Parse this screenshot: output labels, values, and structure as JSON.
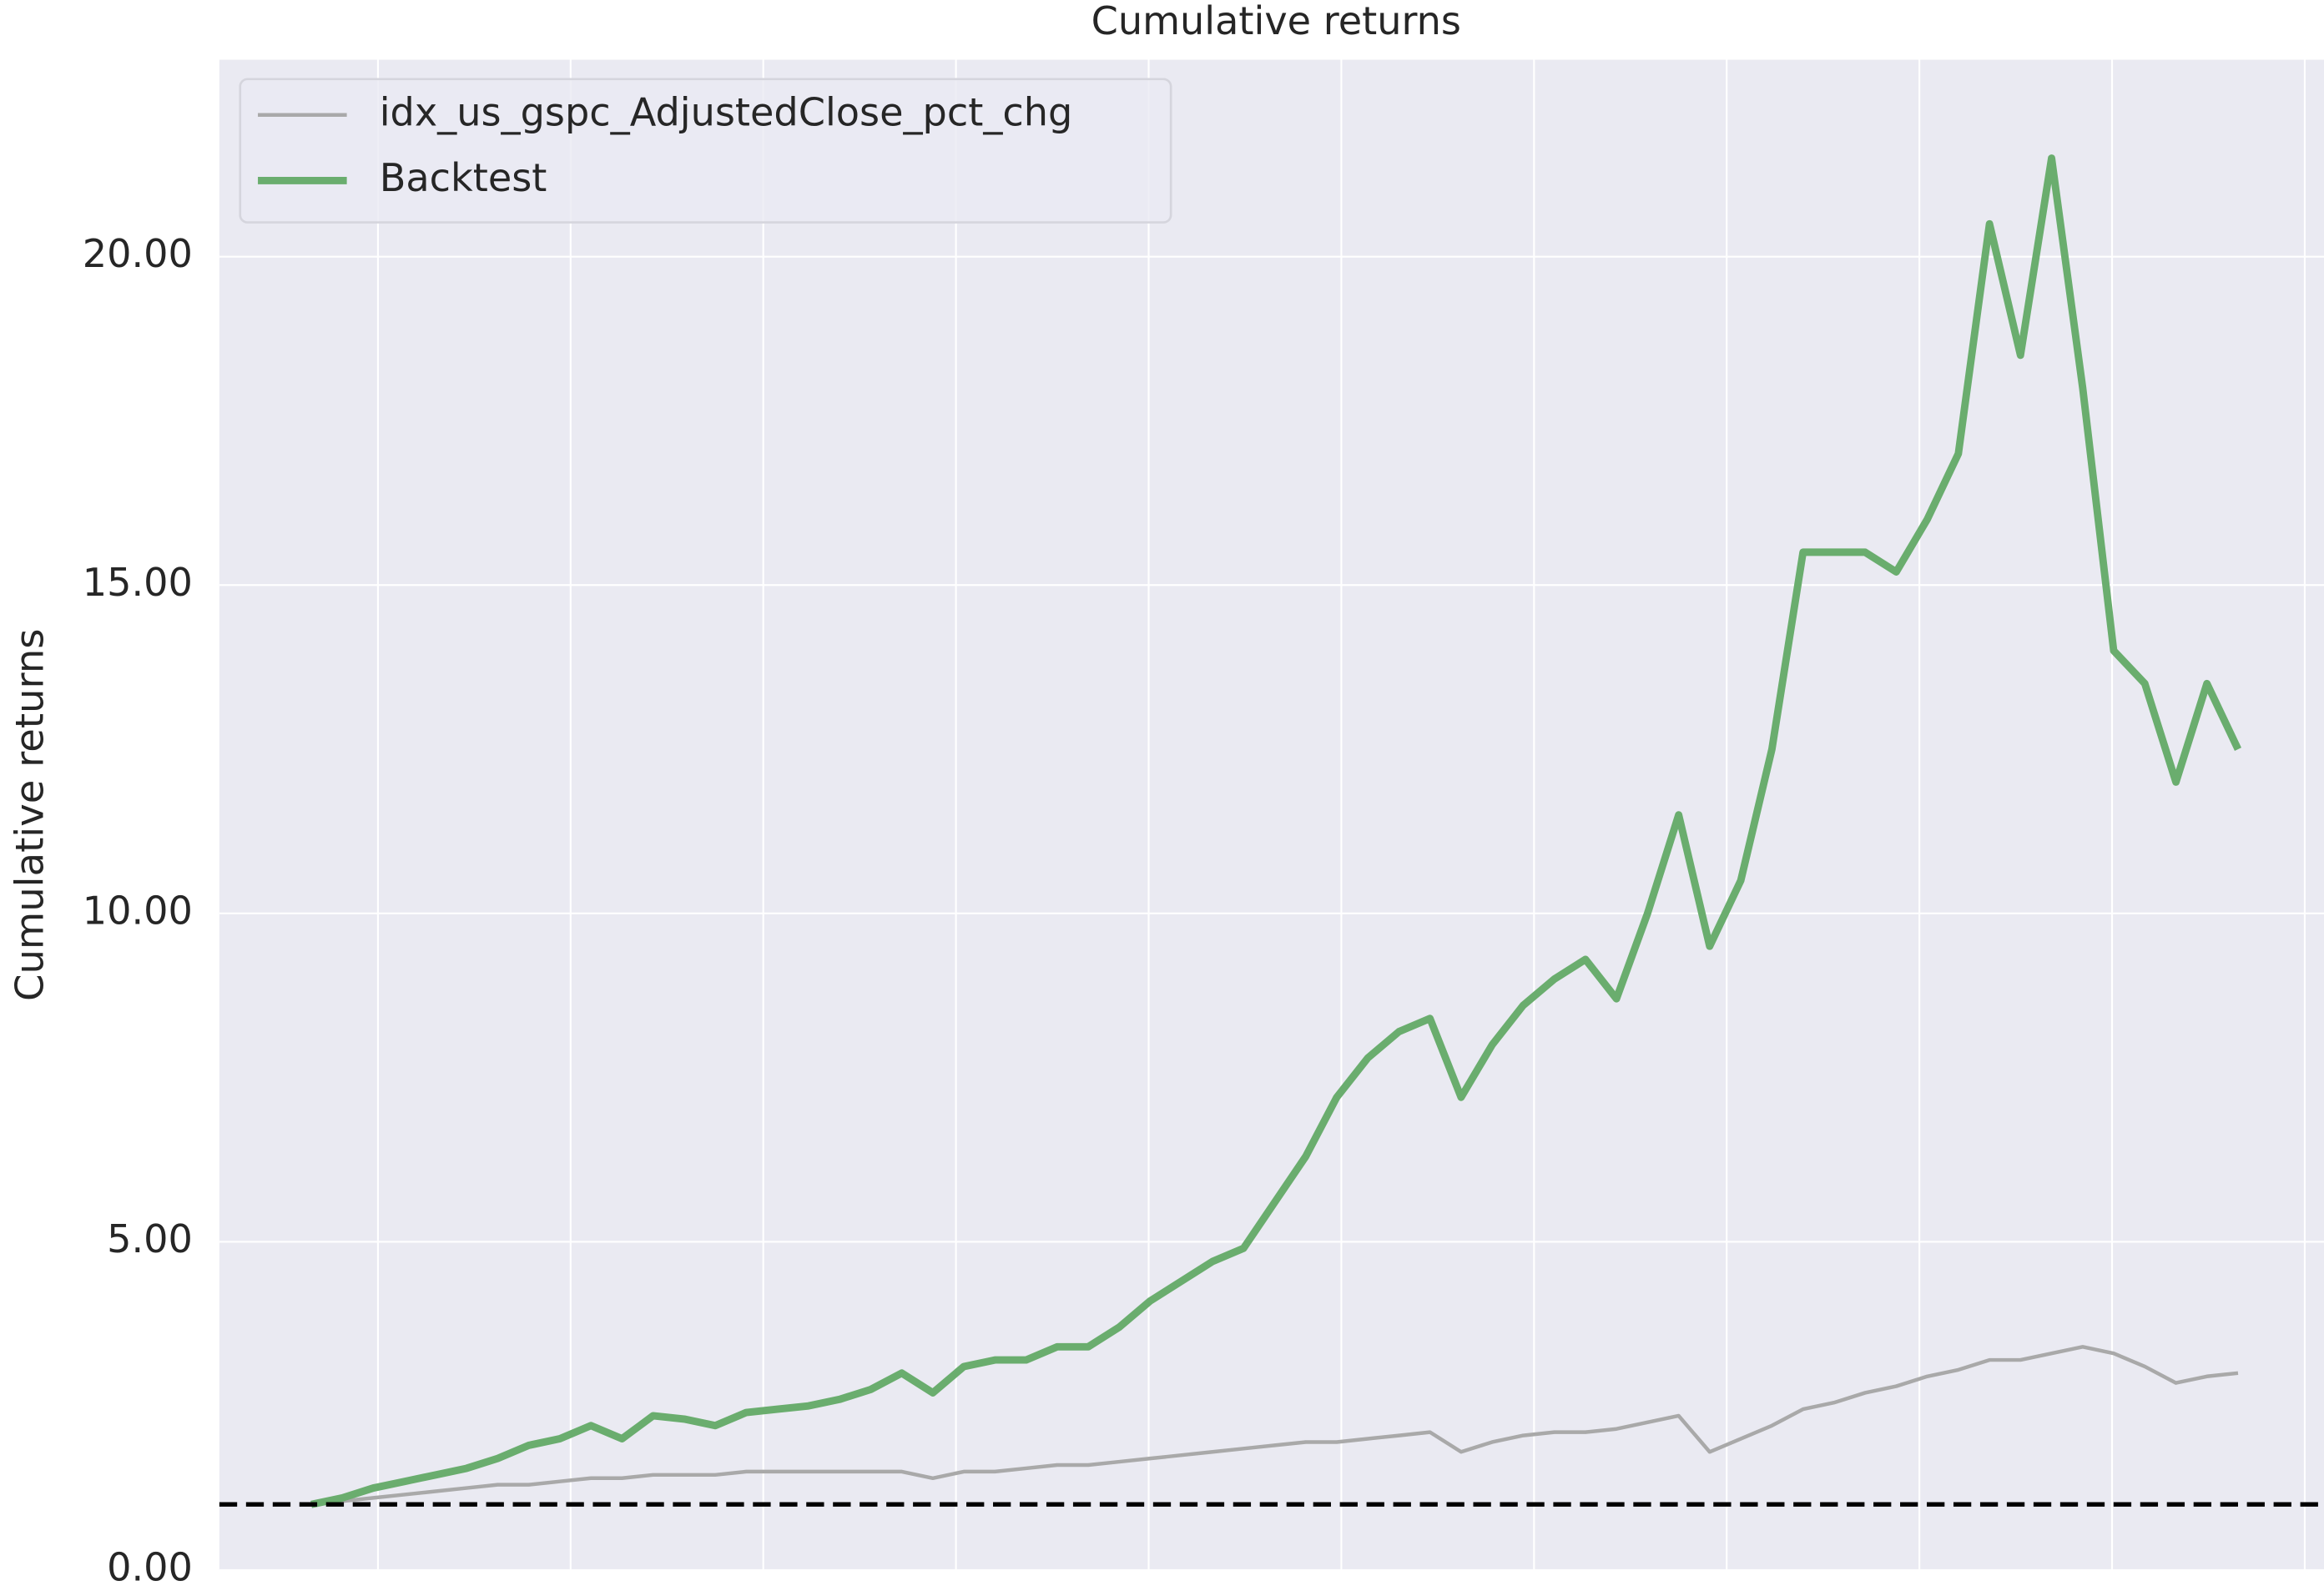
{
  "chart_data": {
    "type": "line",
    "title": "Cumulative returns",
    "y_label": "Cumulative returns",
    "categories": [
      null,
      null,
      null,
      null,
      null,
      null,
      null,
      null,
      null,
      null,
      null,
      null,
      null,
      null,
      null,
      null,
      null,
      null,
      null,
      null,
      null,
      null,
      null,
      null,
      null,
      null,
      null,
      null,
      null,
      null,
      null,
      null,
      null,
      null,
      null,
      null,
      null,
      null,
      null,
      null,
      null,
      null,
      null,
      null,
      null,
      null,
      null,
      null,
      null,
      null,
      null,
      null,
      null,
      null,
      null,
      null,
      null,
      null,
      null,
      null,
      null,
      null,
      null
    ],
    "series": [
      {
        "name": "idx_us_gspc_AdjustedClose_pct_chg",
        "color": "#a9a9a9",
        "values": [
          1.0,
          1.05,
          1.1,
          1.15,
          1.2,
          1.25,
          1.3,
          1.3,
          1.35,
          1.4,
          1.4,
          1.45,
          1.45,
          1.45,
          1.5,
          1.5,
          1.5,
          1.5,
          1.5,
          1.5,
          1.4,
          1.5,
          1.5,
          1.55,
          1.6,
          1.6,
          1.65,
          1.7,
          1.75,
          1.8,
          1.85,
          1.9,
          1.95,
          1.95,
          2.0,
          2.05,
          2.1,
          1.8,
          1.95,
          2.05,
          2.1,
          2.1,
          2.15,
          2.25,
          2.35,
          1.8,
          2.0,
          2.2,
          2.45,
          2.55,
          2.7,
          2.8,
          2.95,
          3.05,
          3.2,
          3.2,
          3.3,
          3.4,
          3.3,
          3.1,
          2.85,
          2.95,
          3.0
        ]
      },
      {
        "name": "Backtest",
        "color": "#6aad6e",
        "values": [
          1.0,
          1.1,
          1.25,
          1.35,
          1.45,
          1.55,
          1.7,
          1.9,
          2.0,
          2.2,
          2.0,
          2.35,
          2.3,
          2.2,
          2.4,
          2.45,
          2.5,
          2.6,
          2.75,
          3.0,
          2.7,
          3.1,
          3.2,
          3.2,
          3.4,
          3.4,
          3.7,
          4.1,
          4.4,
          4.7,
          4.9,
          5.6,
          6.3,
          7.2,
          7.8,
          8.2,
          8.4,
          7.2,
          8.0,
          8.6,
          9.0,
          9.3,
          8.7,
          10.0,
          11.5,
          9.5,
          10.5,
          12.5,
          15.5,
          15.5,
          15.5,
          15.2,
          16.0,
          17.0,
          20.5,
          18.5,
          21.5,
          18.0,
          14.0,
          13.5,
          12.0,
          13.5,
          12.5
        ]
      }
    ],
    "baseline": 1,
    "ylim": [
      0,
      23
    ],
    "yticks": [
      {
        "value": 0,
        "label": "0.00"
      },
      {
        "value": 5,
        "label": "5.00"
      },
      {
        "value": 10,
        "label": "10.00"
      },
      {
        "value": 15,
        "label": "15.00"
      },
      {
        "value": 20,
        "label": "20.00"
      }
    ],
    "grid": true,
    "legend": "upper left"
  }
}
